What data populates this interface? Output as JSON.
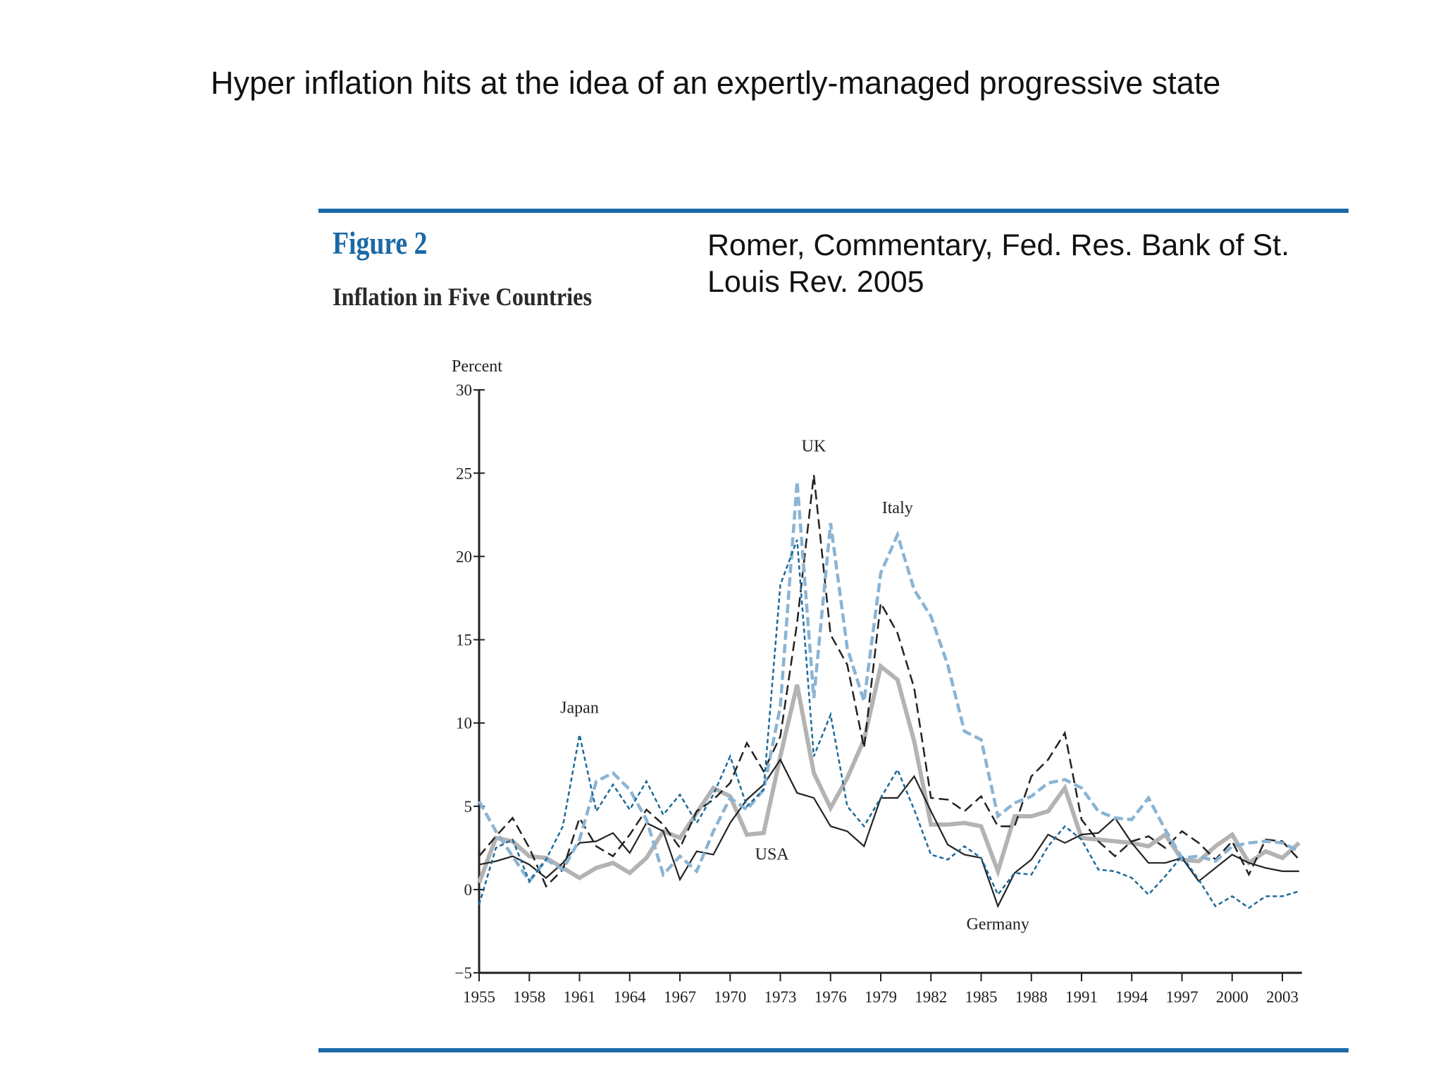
{
  "headline": "Hyper inflation hits at the idea of an expertly-managed progressive state",
  "figure": {
    "label": "Figure 2",
    "subtitle": "Inflation in Five Countries",
    "citation": "Romer, Commentary, Fed. Res. Bank of St. Louis Rev. 2005",
    "rule_color": "#1b69a6"
  },
  "chart_data": {
    "type": "line",
    "title": "Inflation in Five Countries",
    "ylabel": "Percent",
    "xlabel": "",
    "ylim": [
      -5,
      30
    ],
    "xlim": [
      1955,
      2004
    ],
    "yticks": [
      -5,
      0,
      5,
      10,
      15,
      20,
      25,
      30
    ],
    "ytick_labels": [
      "−5",
      "0",
      "5",
      "10",
      "15",
      "20",
      "25",
      "30"
    ],
    "xticks": [
      1955,
      1958,
      1961,
      1964,
      1967,
      1970,
      1973,
      1976,
      1979,
      1982,
      1985,
      1988,
      1991,
      1994,
      1997,
      2000,
      2003
    ],
    "xtick_labels": [
      "1955",
      "1958",
      "1961",
      "1964",
      "1967",
      "1970",
      "1973",
      "1976",
      "1979",
      "1982",
      "1985",
      "1988",
      "1991",
      "1994",
      "1997",
      "2000",
      "2003"
    ],
    "grid": false,
    "x_start": 1955,
    "series": [
      {
        "name": "USA",
        "color": "#b3b3b3",
        "style": "thick-solid",
        "values": [
          0.4,
          3.1,
          2.9,
          2.0,
          1.9,
          1.3,
          0.7,
          1.3,
          1.6,
          1.0,
          1.9,
          3.5,
          3.1,
          4.6,
          6.1,
          5.6,
          3.3,
          3.4,
          8.0,
          12.3,
          7.0,
          4.9,
          6.7,
          9.0,
          13.4,
          12.6,
          8.9,
          3.9,
          3.9,
          4.0,
          3.8,
          1.1,
          4.4,
          4.4,
          4.7,
          6.1,
          3.1,
          3.0,
          2.9,
          2.8,
          2.6,
          3.3,
          1.8,
          1.7,
          2.6,
          3.3,
          1.6,
          2.3,
          1.9,
          2.8
        ]
      },
      {
        "name": "Germany",
        "color": "#222222",
        "style": "solid",
        "values": [
          1.5,
          1.7,
          2.0,
          1.5,
          0.7,
          1.6,
          2.8,
          2.9,
          3.4,
          2.2,
          4.0,
          3.5,
          0.6,
          2.3,
          2.1,
          4.0,
          5.4,
          6.3,
          7.8,
          5.8,
          5.5,
          3.8,
          3.5,
          2.6,
          5.5,
          5.5,
          6.8,
          4.7,
          2.7,
          2.1,
          1.9,
          -1.0,
          1.0,
          1.8,
          3.3,
          2.8,
          3.3,
          3.4,
          4.3,
          2.8,
          1.6,
          1.6,
          1.9,
          0.5,
          1.3,
          2.1,
          1.6,
          1.3,
          1.1,
          1.1
        ]
      },
      {
        "name": "UK",
        "color": "#222222",
        "style": "long-dash",
        "values": [
          2.0,
          3.2,
          4.3,
          2.5,
          0.2,
          1.2,
          4.3,
          2.6,
          2.0,
          3.3,
          4.8,
          3.9,
          2.5,
          4.7,
          5.4,
          6.4,
          8.8,
          7.1,
          9.2,
          16.0,
          24.9,
          15.3,
          13.5,
          8.5,
          17.2,
          15.4,
          12.1,
          5.5,
          5.4,
          4.7,
          5.6,
          3.8,
          3.8,
          6.8,
          7.8,
          9.4,
          4.2,
          2.9,
          2.0,
          2.9,
          3.2,
          2.5,
          3.5,
          2.8,
          1.8,
          2.9,
          0.9,
          3.0,
          2.9,
          1.8
        ]
      },
      {
        "name": "Japan",
        "color": "#1e6a9a",
        "style": "short-dash",
        "values": [
          -0.9,
          2.5,
          3.0,
          0.5,
          1.8,
          3.8,
          9.3,
          4.7,
          6.3,
          4.8,
          6.5,
          4.5,
          5.7,
          4.0,
          5.7,
          8.0,
          5.0,
          6.0,
          18.3,
          21.0,
          8.0,
          10.5,
          5.0,
          3.8,
          5.5,
          7.2,
          4.8,
          2.1,
          1.8,
          2.6,
          1.9,
          -0.3,
          1.0,
          0.9,
          2.6,
          3.8,
          3.0,
          1.2,
          1.1,
          0.7,
          -0.3,
          0.8,
          2.0,
          0.6,
          -1.0,
          -0.4,
          -1.1,
          -0.4,
          -0.4,
          -0.1
        ]
      },
      {
        "name": "Italy",
        "color": "#8ab4d4",
        "style": "thick-dash",
        "values": [
          5.3,
          3.5,
          2.0,
          0.5,
          1.8,
          1.2,
          3.0,
          6.5,
          7.0,
          6.0,
          4.2,
          0.9,
          2.0,
          1.1,
          3.5,
          5.5,
          4.8,
          6.0,
          11.0,
          24.5,
          11.5,
          22.0,
          14.5,
          11.3,
          19.0,
          21.3,
          18.0,
          16.4,
          13.5,
          9.5,
          9.0,
          4.4,
          5.2,
          5.6,
          6.4,
          6.6,
          6.1,
          4.7,
          4.3,
          4.2,
          5.5,
          3.6,
          1.9,
          2.0,
          1.7,
          2.6,
          2.8,
          2.9,
          2.8,
          2.3
        ]
      }
    ],
    "annotations": [
      {
        "text": "UK",
        "x": 1975,
        "y": 26.3
      },
      {
        "text": "Italy",
        "x": 1980,
        "y": 22.6
      },
      {
        "text": "Japan",
        "x": 1961,
        "y": 10.6
      },
      {
        "text": "USA",
        "x": 1972.5,
        "y": 1.8
      },
      {
        "text": "Germany",
        "x": 1986,
        "y": -2.4
      }
    ]
  }
}
